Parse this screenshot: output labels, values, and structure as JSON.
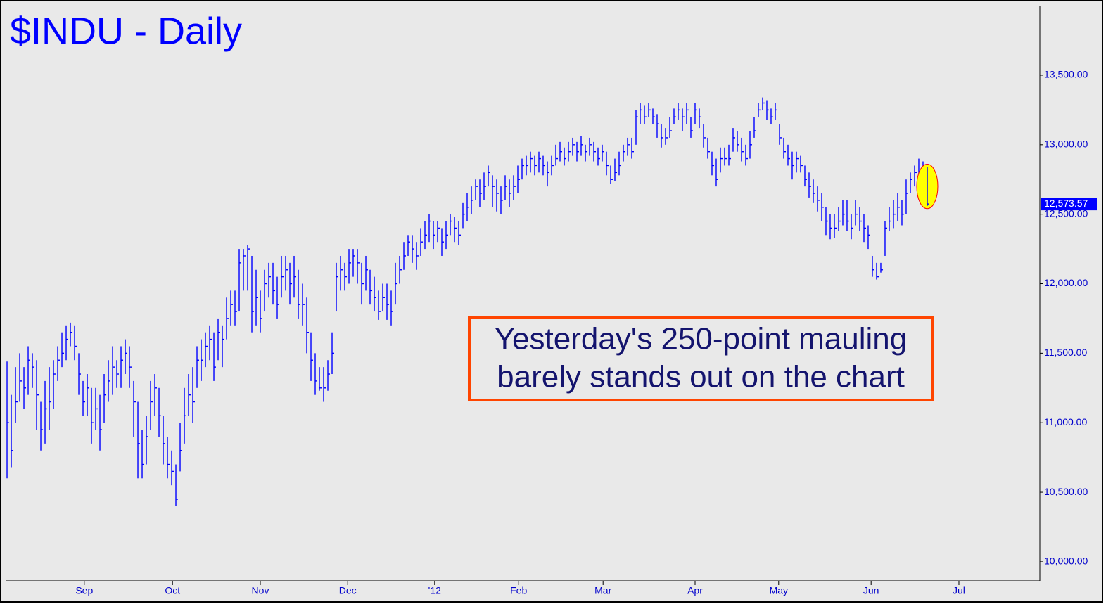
{
  "chart_data": {
    "type": "hlc",
    "title": "$INDU - Daily",
    "annotation": [
      "Yesterday's 250-point mauling",
      "barely stands out on the chart"
    ],
    "color": "#0000ff",
    "last_value_label": "12,573.57",
    "xlim": [
      -1.67,
      244.67
    ],
    "xticks": [
      {
        "value": 18.3,
        "label": "Sep"
      },
      {
        "value": 39.2,
        "label": "Oct"
      },
      {
        "value": 60,
        "label": "Nov"
      },
      {
        "value": 80.7,
        "label": "Dec"
      },
      {
        "value": 101.3,
        "label": "'12"
      },
      {
        "value": 121.2,
        "label": "Feb"
      },
      {
        "value": 141.2,
        "label": "Mar"
      },
      {
        "value": 163,
        "label": "Apr"
      },
      {
        "value": 182.8,
        "label": "May"
      },
      {
        "value": 204.7,
        "label": "Jun"
      },
      {
        "value": 225.5,
        "label": "Jul"
      }
    ],
    "ylim": [
      9863,
      14041
    ],
    "yticks": [
      {
        "value": 10000,
        "label": "10,000.00"
      },
      {
        "value": 10500,
        "label": "10,500.00"
      },
      {
        "value": 11000,
        "label": "11,000.00"
      },
      {
        "value": 11500,
        "label": "11,500.00"
      },
      {
        "value": 12000,
        "label": "12,000.00"
      },
      {
        "value": 12500,
        "label": "12,500.00"
      },
      {
        "value": 13000,
        "label": "13,000.00"
      },
      {
        "value": 13500,
        "label": "13,500.00"
      }
    ],
    "high": [
      11440,
      11200,
      11400,
      11500,
      11400,
      11550,
      11500,
      11450,
      11150,
      11300,
      11400,
      11450,
      11550,
      11650,
      11700,
      11720,
      11700,
      11500,
      11300,
      11350,
      11250,
      11250,
      11200,
      11350,
      11450,
      11550,
      11450,
      11550,
      11600,
      11550,
      11300,
      11150,
      10950,
      11050,
      11300,
      11350,
      11250,
      11050,
      10900,
      10800,
      10700,
      11000,
      11250,
      11350,
      11400,
      11550,
      11600,
      11650,
      11700,
      11650,
      11750,
      11700,
      11900,
      11950,
      11950,
      12250,
      12250,
      12280,
      12200,
      12100,
      11950,
      12100,
      12150,
      12150,
      12050,
      12200,
      12200,
      12150,
      12200,
      12100,
      12000,
      11900,
      11650,
      11500,
      11400,
      11400,
      11450,
      11650,
      12150,
      12200,
      12150,
      12250,
      12250,
      12250,
      12150,
      12200,
      12100,
      12050,
      11950,
      12000,
      12000,
      11950,
      12150,
      12200,
      12300,
      12350,
      12350,
      12300,
      12400,
      12450,
      12500,
      12450,
      12450,
      12400,
      12450,
      12500,
      12480,
      12450,
      12580,
      12650,
      12700,
      12750,
      12750,
      12800,
      12850,
      12780,
      12750,
      12700,
      12780,
      12750,
      12780,
      12850,
      12900,
      12920,
      12950,
      12920,
      12950,
      12920,
      12880,
      12920,
      13000,
      13020,
      12980,
      13020,
      13050,
      13020,
      13060,
      13000,
      13050,
      13020,
      12980,
      13000,
      12950,
      12850,
      12900,
      12950,
      13000,
      13050,
      13050,
      13250,
      13300,
      13280,
      13300,
      13260,
      13220,
      13150,
      13120,
      13200,
      13260,
      13300,
      13260,
      13300,
      13200,
      13300,
      13260,
      13150,
      13050,
      12950,
      12900,
      12980,
      12980,
      13000,
      13120,
      13100,
      13050,
      13000,
      13100,
      13200,
      13300,
      13340,
      13320,
      13260,
      13300,
      13150,
      13050,
      13000,
      12950,
      12950,
      12920,
      12850,
      12800,
      12750,
      12700,
      12650,
      12550,
      12500,
      12500,
      12550,
      12600,
      12600,
      12500,
      12600,
      12550,
      12500,
      12420,
      12200,
      12150,
      12150,
      12450,
      12550,
      12600,
      12650,
      12600,
      12750,
      12800,
      12850,
      12900,
      12880,
      12840
    ],
    "low": [
      10600,
      10680,
      11000,
      11150,
      11100,
      11200,
      11250,
      10950,
      10800,
      10850,
      10950,
      11100,
      11300,
      11400,
      11450,
      11550,
      11450,
      11200,
      11050,
      11050,
      10850,
      10950,
      10800,
      11000,
      11150,
      11200,
      11250,
      11250,
      11350,
      11250,
      10900,
      10600,
      10600,
      10700,
      10950,
      11050,
      10900,
      10700,
      10600,
      10550,
      10400,
      10650,
      10850,
      11050,
      11000,
      11250,
      11300,
      11400,
      11450,
      11300,
      11450,
      11400,
      11600,
      11700,
      11700,
      11800,
      11950,
      11950,
      11650,
      11700,
      11650,
      11800,
      11900,
      11850,
      11750,
      11900,
      11950,
      11850,
      11900,
      11750,
      11700,
      11500,
      11300,
      11200,
      11230,
      11150,
      11230,
      11350,
      11800,
      11950,
      11950,
      12000,
      12050,
      12000,
      11850,
      11950,
      11850,
      11800,
      11740,
      11800,
      11740,
      11700,
      11850,
      12000,
      12100,
      12200,
      12150,
      12100,
      12200,
      12250,
      12300,
      12250,
      12300,
      12200,
      12250,
      12350,
      12300,
      12280,
      12400,
      12450,
      12500,
      12600,
      12550,
      12600,
      12700,
      12550,
      12520,
      12500,
      12600,
      12550,
      12600,
      12650,
      12750,
      12780,
      12800,
      12780,
      12800,
      12780,
      12700,
      12780,
      12850,
      12880,
      12850,
      12880,
      12920,
      12880,
      12920,
      12880,
      12920,
      12880,
      12850,
      12880,
      12780,
      12720,
      12740,
      12780,
      12880,
      12920,
      12900,
      13000,
      13150,
      13150,
      13200,
      13150,
      13050,
      12980,
      13000,
      13050,
      13150,
      13180,
      13100,
      13150,
      13050,
      13150,
      13120,
      12980,
      12900,
      12780,
      12700,
      12800,
      12850,
      12850,
      12950,
      12950,
      12880,
      12850,
      12900,
      13050,
      13200,
      13250,
      13180,
      13150,
      13180,
      13000,
      12900,
      12850,
      12750,
      12800,
      12800,
      12700,
      12620,
      12580,
      12520,
      12450,
      12350,
      12320,
      12330,
      12380,
      12420,
      12380,
      12320,
      12420,
      12380,
      12300,
      12250,
      12050,
      12030,
      12080,
      12200,
      12380,
      12400,
      12450,
      12420,
      12500,
      12650,
      12700,
      12720,
      12750,
      12560
    ],
    "close": [
      11000,
      10800,
      11150,
      11300,
      11250,
      11450,
      11400,
      11200,
      10950,
      11100,
      11150,
      11350,
      11450,
      11500,
      11600,
      11650,
      11550,
      11350,
      11150,
      11250,
      11000,
      11100,
      10950,
      11200,
      11300,
      11400,
      11350,
      11450,
      11500,
      11400,
      11150,
      10850,
      10700,
      10900,
      11150,
      11250,
      11050,
      10850,
      10700,
      10650,
      10450,
      10800,
      11050,
      11200,
      11150,
      11450,
      11450,
      11550,
      11600,
      11400,
      11650,
      11600,
      11750,
      11850,
      11800,
      12150,
      12200,
      12250,
      11800,
      11900,
      11750,
      12000,
      12050,
      11950,
      11850,
      12050,
      12100,
      12000,
      12050,
      11850,
      11850,
      11650,
      11450,
      11300,
      11250,
      11250,
      11350,
      11500,
      12050,
      12100,
      12050,
      12150,
      12200,
      12150,
      12000,
      12100,
      11950,
      11900,
      11800,
      11900,
      11850,
      11800,
      12000,
      12100,
      12200,
      12300,
      12250,
      12200,
      12300,
      12350,
      12450,
      12350,
      12400,
      12300,
      12350,
      12450,
      12400,
      12350,
      12500,
      12550,
      12600,
      12700,
      12650,
      12700,
      12800,
      12700,
      12650,
      12600,
      12700,
      12650,
      12700,
      12750,
      12850,
      12850,
      12900,
      12850,
      12900,
      12850,
      12800,
      12850,
      12900,
      12950,
      12900,
      12950,
      13000,
      12950,
      13000,
      12950,
      13000,
      12950,
      12900,
      12950,
      12850,
      12750,
      12800,
      12850,
      12950,
      13000,
      12950,
      13200,
      13250,
      13200,
      13250,
      13200,
      13150,
      13050,
      13050,
      13100,
      13200,
      13250,
      13200,
      13250,
      13100,
      13250,
      13200,
      13050,
      12950,
      12850,
      12750,
      12900,
      12900,
      12900,
      13050,
      13000,
      12950,
      12900,
      13000,
      13100,
      13250,
      13300,
      13250,
      13200,
      13250,
      13050,
      12950,
      12900,
      12850,
      12900,
      12850,
      12750,
      12700,
      12650,
      12600,
      12550,
      12450,
      12400,
      12400,
      12450,
      12500,
      12450,
      12400,
      12500,
      12450,
      12400,
      12350,
      12100,
      12050,
      12100,
      12400,
      12450,
      12500,
      12550,
      12500,
      12650,
      12750,
      12800,
      12800,
      12850,
      12573.57
    ]
  }
}
